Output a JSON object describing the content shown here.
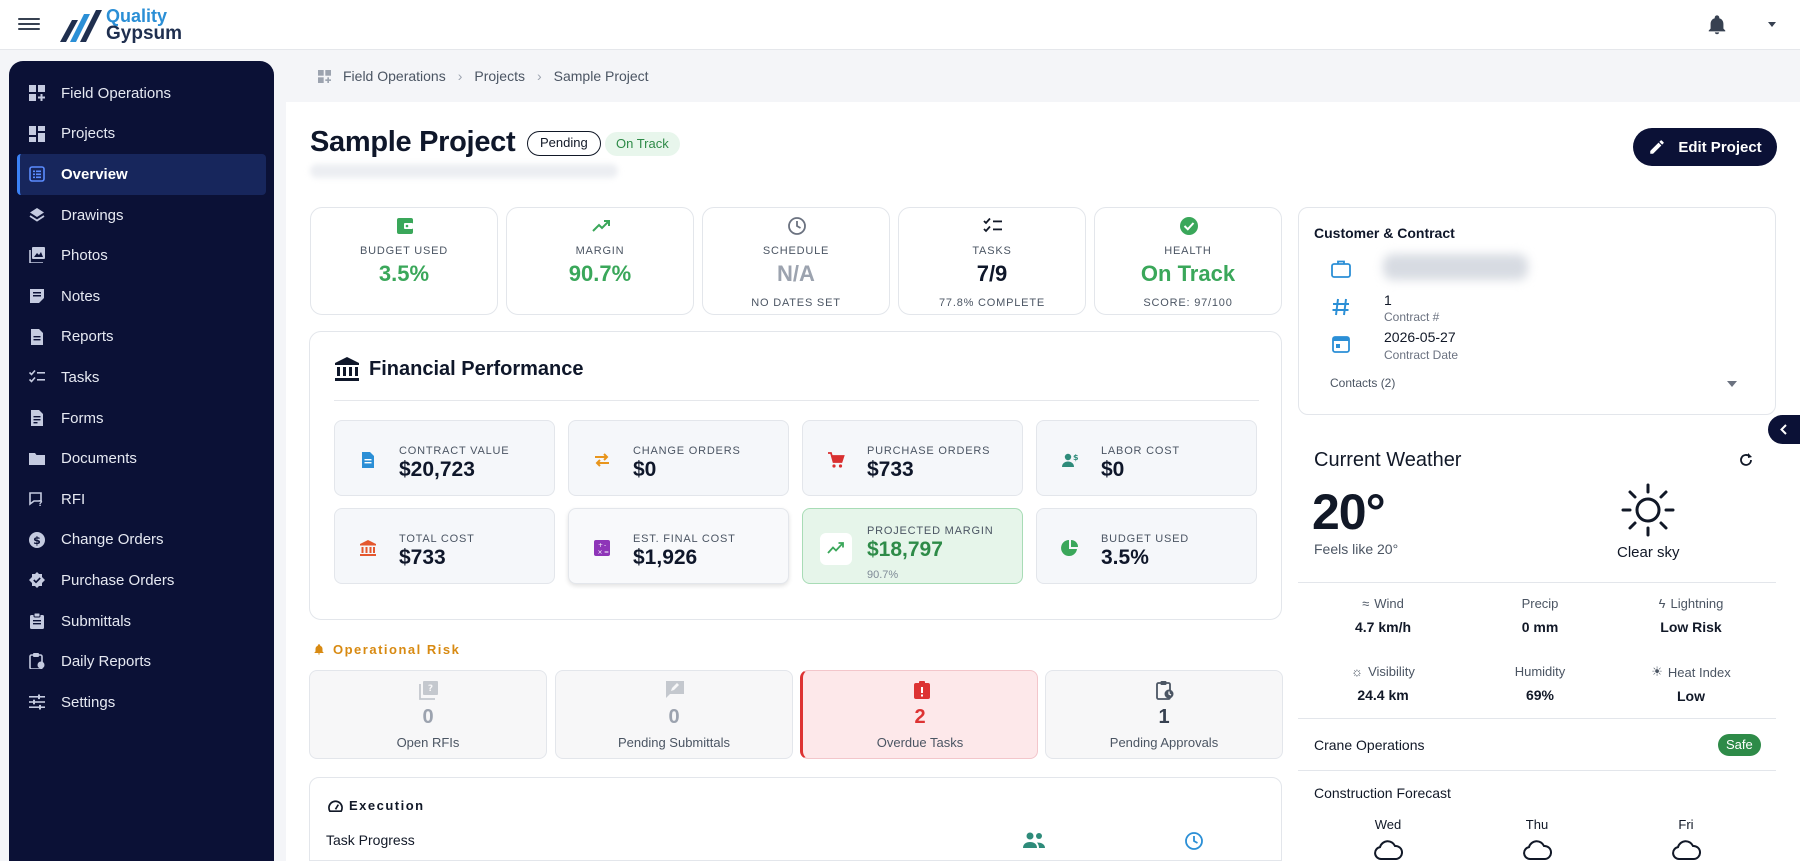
{
  "header": {
    "logo_top": "Quality",
    "logo_bottom": "Gypsum"
  },
  "sidebar": {
    "items": [
      {
        "label": "Field Operations",
        "icon": "dashboard-plus-icon"
      },
      {
        "label": "Projects",
        "icon": "dashboard-icon"
      },
      {
        "label": "Overview",
        "icon": "list-alt-icon",
        "active": true
      },
      {
        "label": "Drawings",
        "icon": "layers-icon"
      },
      {
        "label": "Photos",
        "icon": "photo-icon"
      },
      {
        "label": "Notes",
        "icon": "note-icon"
      },
      {
        "label": "Reports",
        "icon": "report-icon"
      },
      {
        "label": "Tasks",
        "icon": "checklist-icon"
      },
      {
        "label": "Forms",
        "icon": "form-icon"
      },
      {
        "label": "Documents",
        "icon": "folder-icon"
      },
      {
        "label": "RFI",
        "icon": "rfi-icon"
      },
      {
        "label": "Change Orders",
        "icon": "dollar-icon"
      },
      {
        "label": "Purchase Orders",
        "icon": "verified-icon"
      },
      {
        "label": "Submittals",
        "icon": "clipboard-icon"
      },
      {
        "label": "Daily Reports",
        "icon": "daily-report-icon"
      },
      {
        "label": "Settings",
        "icon": "sliders-icon"
      }
    ]
  },
  "breadcrumb": [
    "Field Operations",
    "Projects",
    "Sample Project"
  ],
  "project": {
    "title": "Sample Project",
    "status": "Pending",
    "track": "On Track",
    "edit_label": "Edit Project"
  },
  "kpis": [
    {
      "label": "BUDGET USED",
      "value": "3.5%",
      "sub": "",
      "color": "#3aa75a"
    },
    {
      "label": "MARGIN",
      "value": "90.7%",
      "sub": "",
      "color": "#3aa75a"
    },
    {
      "label": "SCHEDULE",
      "value": "N/A",
      "sub": "NO DATES SET",
      "color": "#9ca3af"
    },
    {
      "label": "TASKS",
      "value": "7/9",
      "sub": "77.8% COMPLETE",
      "color": "#0f172a"
    },
    {
      "label": "HEALTH",
      "value": "On Track",
      "sub": "SCORE: 97/100",
      "color": "#3aa75a"
    }
  ],
  "financial": {
    "title": "Financial Performance",
    "cards": [
      {
        "label": "CONTRACT VALUE",
        "value": "$20,723",
        "sub": ""
      },
      {
        "label": "CHANGE ORDERS",
        "value": "$0",
        "sub": ""
      },
      {
        "label": "PURCHASE ORDERS",
        "value": "$733",
        "sub": ""
      },
      {
        "label": "LABOR COST",
        "value": "$0",
        "sub": ""
      },
      {
        "label": "TOTAL COST",
        "value": "$733",
        "sub": ""
      },
      {
        "label": "EST. FINAL COST",
        "value": "$1,926",
        "sub": ""
      },
      {
        "label": "PROJECTED MARGIN",
        "value": "$18,797",
        "sub": "90.7%"
      },
      {
        "label": "BUDGET USED",
        "value": "3.5%",
        "sub": ""
      }
    ]
  },
  "risk": {
    "title": "Operational Risk",
    "cards": [
      {
        "value": "0",
        "label": "Open RFIs"
      },
      {
        "value": "0",
        "label": "Pending Submittals"
      },
      {
        "value": "2",
        "label": "Overdue Tasks"
      },
      {
        "value": "1",
        "label": "Pending Approvals"
      }
    ]
  },
  "execution": {
    "title": "Execution",
    "task_progress": "Task Progress"
  },
  "customer": {
    "title": "Customer & Contract",
    "contract_no": "1",
    "contract_no_label": "Contract #",
    "contract_date": "2026-05-27",
    "contract_date_label": "Contract Date",
    "contacts": "Contacts (2)"
  },
  "weather": {
    "title": "Current Weather",
    "temp": "20°",
    "feels": "Feels like 20°",
    "condition": "Clear sky",
    "stats": [
      {
        "label": "Wind",
        "value": "4.7 km/h"
      },
      {
        "label": "Precip",
        "value": "0 mm"
      },
      {
        "label": "Lightning",
        "value": "Low Risk"
      },
      {
        "label": "Visibility",
        "value": "24.4 km"
      },
      {
        "label": "Humidity",
        "value": "69%"
      },
      {
        "label": "Heat Index",
        "value": "Low"
      }
    ],
    "crane_label": "Crane Operations",
    "crane_status": "Safe",
    "forecast_title": "Construction Forecast",
    "forecast_days": [
      "Wed",
      "Thu",
      "Fri"
    ]
  }
}
